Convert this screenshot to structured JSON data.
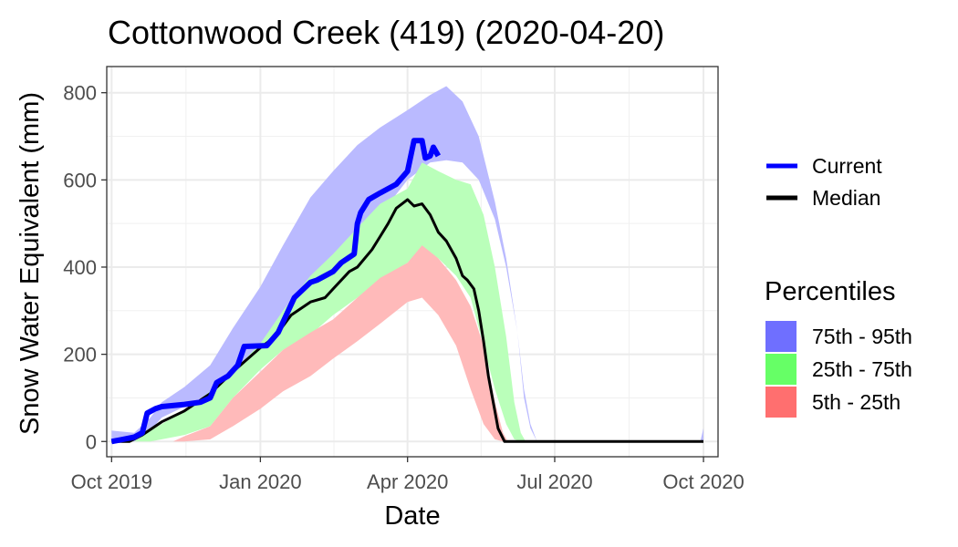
{
  "chart_data": {
    "type": "area",
    "title": "Cottonwood Creek (419) (2020-04-20)",
    "xlabel": "Date",
    "ylabel": "Snow Water Equivalent (mm)",
    "xlim": [
      "2019-09-28",
      "2020-10-10"
    ],
    "ylim": [
      -35,
      860
    ],
    "x_ticks": [
      "2019-10-01",
      "2020-01-01",
      "2020-04-01",
      "2020-07-01",
      "2020-10-01"
    ],
    "x_tick_labels": [
      "Oct 2019",
      "Jan 2020",
      "Apr 2020",
      "Jul 2020",
      "Oct 2020"
    ],
    "y_ticks": [
      0,
      200,
      400,
      600,
      800
    ],
    "y_tick_labels": [
      "0",
      "200",
      "400",
      "600",
      "800"
    ],
    "grid": true,
    "legend_position": "right",
    "line_legend": [
      {
        "name": "Current",
        "color": "#0000ff"
      },
      {
        "name": "Median",
        "color": "#000000"
      }
    ],
    "percentile_legend_title": "Percentiles",
    "percentile_legend": [
      {
        "name": "75th - 95th",
        "color": "#6f6fff"
      },
      {
        "name": "25th - 75th",
        "color": "#66ff66"
      },
      {
        "name": "5th - 25th",
        "color": "#ff6f6f"
      }
    ],
    "bands": [
      {
        "name": "75th - 95th",
        "color": "#babaff",
        "points": [
          [
            "2019-10-01",
            0,
            25
          ],
          [
            "2019-10-15",
            0,
            20
          ],
          [
            "2019-10-25",
            25,
            55
          ],
          [
            "2019-11-01",
            55,
            90
          ],
          [
            "2019-11-15",
            80,
            125
          ],
          [
            "2019-12-01",
            110,
            175
          ],
          [
            "2019-12-15",
            160,
            260
          ],
          [
            "2020-01-01",
            215,
            355
          ],
          [
            "2020-01-15",
            275,
            450
          ],
          [
            "2020-02-01",
            350,
            560
          ],
          [
            "2020-02-15",
            420,
            620
          ],
          [
            "2020-03-01",
            470,
            680
          ],
          [
            "2020-03-15",
            520,
            720
          ],
          [
            "2020-04-01",
            600,
            760
          ],
          [
            "2020-04-15",
            640,
            795
          ],
          [
            "2020-04-25",
            645,
            815
          ],
          [
            "2020-05-05",
            640,
            780
          ],
          [
            "2020-05-15",
            600,
            700
          ],
          [
            "2020-05-25",
            510,
            550
          ],
          [
            "2020-06-01",
            400,
            420
          ],
          [
            "2020-06-08",
            250,
            250
          ],
          [
            "2020-06-12",
            120,
            100
          ],
          [
            "2020-06-16",
            40,
            30
          ],
          [
            "2020-06-20",
            0,
            0
          ],
          [
            "2020-09-29",
            0,
            0
          ],
          [
            "2020-10-01",
            0,
            30
          ]
        ]
      },
      {
        "name": "25th - 75th",
        "color": "#baffba",
        "points": [
          [
            "2019-10-15",
            0,
            0
          ],
          [
            "2019-10-25",
            0,
            25
          ],
          [
            "2019-11-01",
            5,
            40
          ],
          [
            "2019-11-15",
            15,
            70
          ],
          [
            "2019-12-01",
            35,
            115
          ],
          [
            "2019-12-15",
            100,
            160
          ],
          [
            "2020-01-01",
            165,
            225
          ],
          [
            "2020-01-15",
            210,
            300
          ],
          [
            "2020-02-01",
            245,
            380
          ],
          [
            "2020-02-15",
            290,
            430
          ],
          [
            "2020-03-01",
            330,
            490
          ],
          [
            "2020-03-15",
            370,
            545
          ],
          [
            "2020-04-01",
            410,
            580
          ],
          [
            "2020-04-10",
            440,
            640
          ],
          [
            "2020-04-20",
            420,
            620
          ],
          [
            "2020-05-01",
            380,
            600
          ],
          [
            "2020-05-10",
            330,
            590
          ],
          [
            "2020-05-18",
            220,
            520
          ],
          [
            "2020-05-25",
            120,
            400
          ],
          [
            "2020-06-01",
            40,
            240
          ],
          [
            "2020-06-06",
            5,
            90
          ],
          [
            "2020-06-10",
            0,
            20
          ],
          [
            "2020-06-13",
            0,
            0
          ]
        ]
      },
      {
        "name": "5th - 25th",
        "color": "#ffbaba",
        "points": [
          [
            "2019-11-08",
            0,
            0
          ],
          [
            "2019-11-15",
            0,
            12
          ],
          [
            "2019-12-01",
            5,
            35
          ],
          [
            "2019-12-15",
            35,
            100
          ],
          [
            "2020-01-01",
            75,
            160
          ],
          [
            "2020-01-15",
            115,
            210
          ],
          [
            "2020-02-01",
            150,
            250
          ],
          [
            "2020-02-15",
            190,
            280
          ],
          [
            "2020-03-01",
            230,
            330
          ],
          [
            "2020-03-15",
            270,
            375
          ],
          [
            "2020-04-01",
            320,
            410
          ],
          [
            "2020-04-10",
            330,
            450
          ],
          [
            "2020-04-20",
            290,
            420
          ],
          [
            "2020-05-01",
            220,
            370
          ],
          [
            "2020-05-10",
            120,
            310
          ],
          [
            "2020-05-18",
            40,
            220
          ],
          [
            "2020-05-25",
            5,
            90
          ],
          [
            "2020-05-30",
            0,
            20
          ],
          [
            "2020-06-02",
            0,
            0
          ]
        ]
      }
    ],
    "series": [
      {
        "name": "Median",
        "color": "#000000",
        "points": [
          [
            "2019-10-01",
            0
          ],
          [
            "2019-10-12",
            0
          ],
          [
            "2019-10-20",
            15
          ],
          [
            "2019-11-01",
            45
          ],
          [
            "2019-11-15",
            70
          ],
          [
            "2019-12-01",
            110
          ],
          [
            "2019-12-15",
            160
          ],
          [
            "2020-01-01",
            215
          ],
          [
            "2020-01-10",
            240
          ],
          [
            "2020-01-20",
            290
          ],
          [
            "2020-02-01",
            320
          ],
          [
            "2020-02-10",
            330
          ],
          [
            "2020-02-15",
            350
          ],
          [
            "2020-02-25",
            390
          ],
          [
            "2020-03-01",
            400
          ],
          [
            "2020-03-10",
            440
          ],
          [
            "2020-03-15",
            470
          ],
          [
            "2020-03-20",
            500
          ],
          [
            "2020-03-25",
            535
          ],
          [
            "2020-04-01",
            555
          ],
          [
            "2020-04-05",
            540
          ],
          [
            "2020-04-10",
            545
          ],
          [
            "2020-04-15",
            520
          ],
          [
            "2020-04-20",
            480
          ],
          [
            "2020-04-25",
            460
          ],
          [
            "2020-05-01",
            420
          ],
          [
            "2020-05-05",
            380
          ],
          [
            "2020-05-08",
            370
          ],
          [
            "2020-05-12",
            350
          ],
          [
            "2020-05-15",
            300
          ],
          [
            "2020-05-18",
            230
          ],
          [
            "2020-05-21",
            150
          ],
          [
            "2020-05-24",
            90
          ],
          [
            "2020-05-27",
            30
          ],
          [
            "2020-05-31",
            0
          ],
          [
            "2020-10-01",
            0
          ]
        ]
      },
      {
        "name": "Current",
        "color": "#0000ff",
        "points": [
          [
            "2019-10-01",
            0
          ],
          [
            "2019-10-08",
            5
          ],
          [
            "2019-10-15",
            10
          ],
          [
            "2019-10-20",
            20
          ],
          [
            "2019-10-23",
            65
          ],
          [
            "2019-10-28",
            75
          ],
          [
            "2019-11-01",
            80
          ],
          [
            "2019-11-15",
            85
          ],
          [
            "2019-11-25",
            90
          ],
          [
            "2019-12-01",
            100
          ],
          [
            "2019-12-05",
            135
          ],
          [
            "2019-12-12",
            150
          ],
          [
            "2019-12-18",
            175
          ],
          [
            "2019-12-22",
            218
          ],
          [
            "2020-01-05",
            220
          ],
          [
            "2020-01-12",
            250
          ],
          [
            "2020-01-22",
            330
          ],
          [
            "2020-02-01",
            365
          ],
          [
            "2020-02-05",
            370
          ],
          [
            "2020-02-15",
            390
          ],
          [
            "2020-02-20",
            410
          ],
          [
            "2020-02-28",
            430
          ],
          [
            "2020-03-01",
            500
          ],
          [
            "2020-03-03",
            525
          ],
          [
            "2020-03-08",
            555
          ],
          [
            "2020-03-15",
            570
          ],
          [
            "2020-03-25",
            590
          ],
          [
            "2020-04-01",
            620
          ],
          [
            "2020-04-05",
            690
          ],
          [
            "2020-04-10",
            690
          ],
          [
            "2020-04-12",
            650
          ],
          [
            "2020-04-15",
            655
          ],
          [
            "2020-04-17",
            675
          ],
          [
            "2020-04-20",
            655
          ]
        ]
      }
    ]
  }
}
